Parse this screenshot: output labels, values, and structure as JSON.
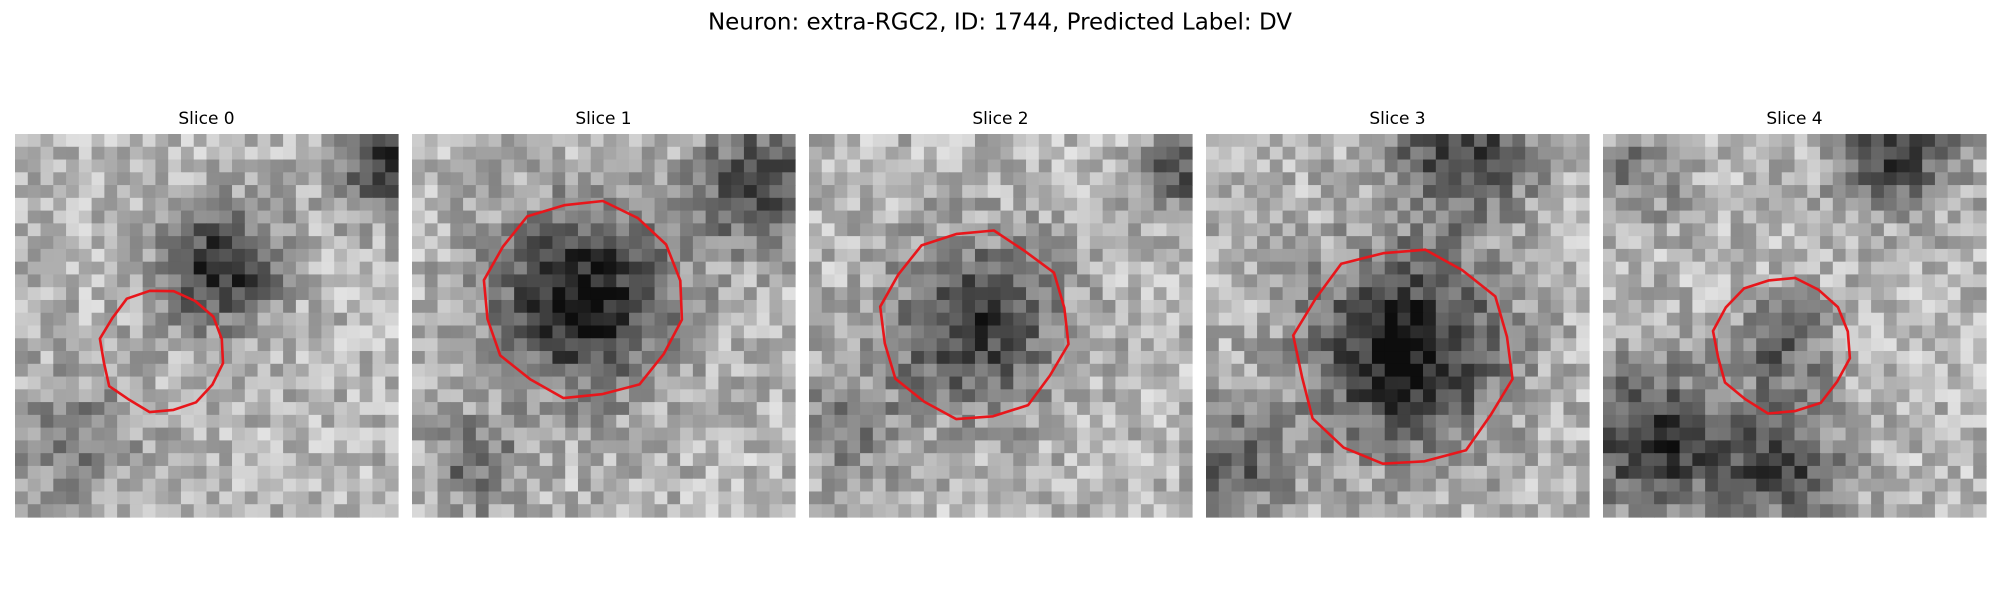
{
  "title": "Neuron: extra-RGC2, ID: 1744, Predicted Label: DV",
  "panels": [
    {
      "title": "Slice 0"
    },
    {
      "title": "Slice 1"
    },
    {
      "title": "Slice 2"
    },
    {
      "title": "Slice 3"
    },
    {
      "title": "Slice 4"
    }
  ]
}
